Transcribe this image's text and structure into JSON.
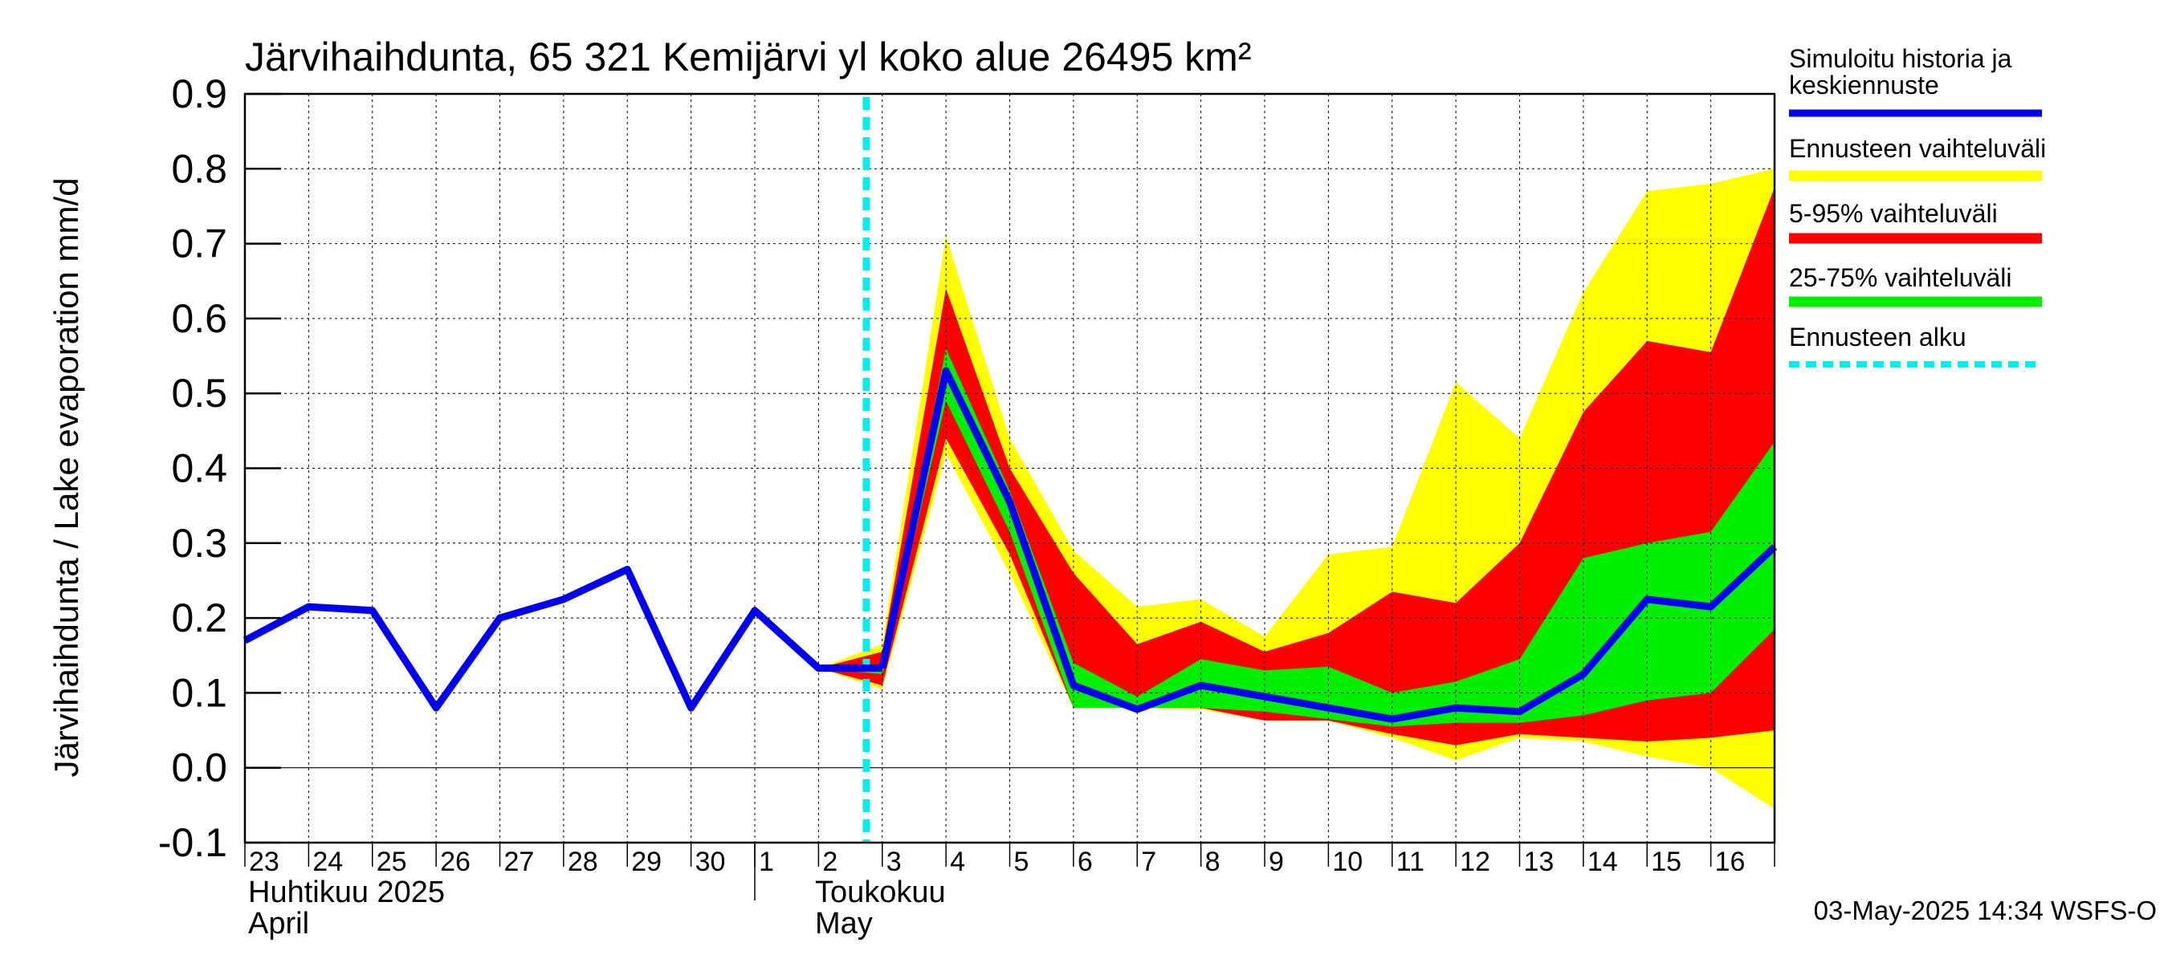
{
  "chart_data": {
    "type": "area",
    "title": "Järvihaihdunta, 65 321 Kemijärvi yl koko alue 26495 km²",
    "ylabel": "Järvihaihdunta / Lake evaporation   mm/d",
    "ylim": [
      -0.1,
      0.9
    ],
    "y_ticks": [
      "-0.1",
      "0.0",
      "0.1",
      "0.2",
      "0.3",
      "0.4",
      "0.5",
      "0.6",
      "0.7",
      "0.8",
      "0.9"
    ],
    "x_tick_labels": [
      "23",
      "24",
      "25",
      "26",
      "27",
      "28",
      "29",
      "30",
      "1",
      "2",
      "3",
      "4",
      "5",
      "6",
      "7",
      "8",
      "9",
      "10",
      "11",
      "12",
      "13",
      "14",
      "15",
      "16"
    ],
    "month_labels": [
      {
        "fi": "Huhtikuu  2025",
        "en": "April"
      },
      {
        "fi": "Toukokuu",
        "en": "May"
      }
    ],
    "x_start": "2025-04-23",
    "forecast_start": "2025-05-02T18:00",
    "grid": true,
    "history": {
      "dates": [
        "2025-04-23",
        "2025-04-24",
        "2025-04-25",
        "2025-04-26",
        "2025-04-27",
        "2025-04-28",
        "2025-04-29",
        "2025-04-30",
        "2025-05-01",
        "2025-05-02",
        "2025-05-03"
      ],
      "values": [
        0.17,
        0.215,
        0.21,
        0.08,
        0.2,
        0.225,
        0.265,
        0.08,
        0.21,
        0.133,
        0.133
      ]
    },
    "forecast": {
      "dates": [
        "2025-05-02",
        "2025-05-03",
        "2025-05-04",
        "2025-05-05",
        "2025-05-06",
        "2025-05-07",
        "2025-05-08",
        "2025-05-09",
        "2025-05-10",
        "2025-05-11",
        "2025-05-12",
        "2025-05-13",
        "2025-05-14",
        "2025-05-15",
        "2025-05-16",
        "2025-05-17"
      ],
      "median": [
        0.133,
        0.133,
        0.53,
        0.355,
        0.11,
        0.078,
        0.11,
        0.095,
        0.08,
        0.065,
        0.08,
        0.075,
        0.125,
        0.225,
        0.215,
        0.295
      ],
      "min": [
        0.133,
        0.105,
        0.42,
        0.26,
        0.08,
        0.08,
        0.078,
        0.063,
        0.063,
        0.04,
        0.01,
        0.04,
        0.035,
        0.015,
        0.0,
        -0.055
      ],
      "max": [
        0.133,
        0.165,
        0.71,
        0.44,
        0.29,
        0.215,
        0.225,
        0.175,
        0.285,
        0.295,
        0.515,
        0.44,
        0.635,
        0.77,
        0.78,
        0.8
      ],
      "p05": [
        0.133,
        0.11,
        0.44,
        0.285,
        0.08,
        0.08,
        0.08,
        0.063,
        0.063,
        0.045,
        0.03,
        0.045,
        0.04,
        0.035,
        0.04,
        0.05
      ],
      "p95": [
        0.133,
        0.155,
        0.64,
        0.4,
        0.26,
        0.165,
        0.195,
        0.155,
        0.18,
        0.235,
        0.22,
        0.3,
        0.475,
        0.57,
        0.555,
        0.775
      ],
      "p25": [
        0.133,
        0.125,
        0.49,
        0.315,
        0.08,
        0.08,
        0.08,
        0.075,
        0.065,
        0.055,
        0.06,
        0.06,
        0.07,
        0.09,
        0.1,
        0.185
      ],
      "p75": [
        0.133,
        0.135,
        0.56,
        0.37,
        0.14,
        0.095,
        0.145,
        0.13,
        0.135,
        0.1,
        0.115,
        0.145,
        0.28,
        0.3,
        0.315,
        0.435
      ]
    },
    "legend": [
      {
        "label": "Simuloitu historia ja keskiennuste",
        "color": "#0000ee",
        "style": "line"
      },
      {
        "label": "Ennusteen vaihteluväli",
        "color": "#ffff00",
        "style": "band"
      },
      {
        "label": "5-95% vaihteluväli",
        "color": "#ff0000",
        "style": "band"
      },
      {
        "label": "25-75% vaihteluväli",
        "color": "#00ee00",
        "style": "band"
      },
      {
        "label": "Ennusteen alku",
        "color": "#00eeee",
        "style": "dashed"
      }
    ],
    "legend_position": "right",
    "timestamp": "03-May-2025 14:34 WSFS-O"
  }
}
